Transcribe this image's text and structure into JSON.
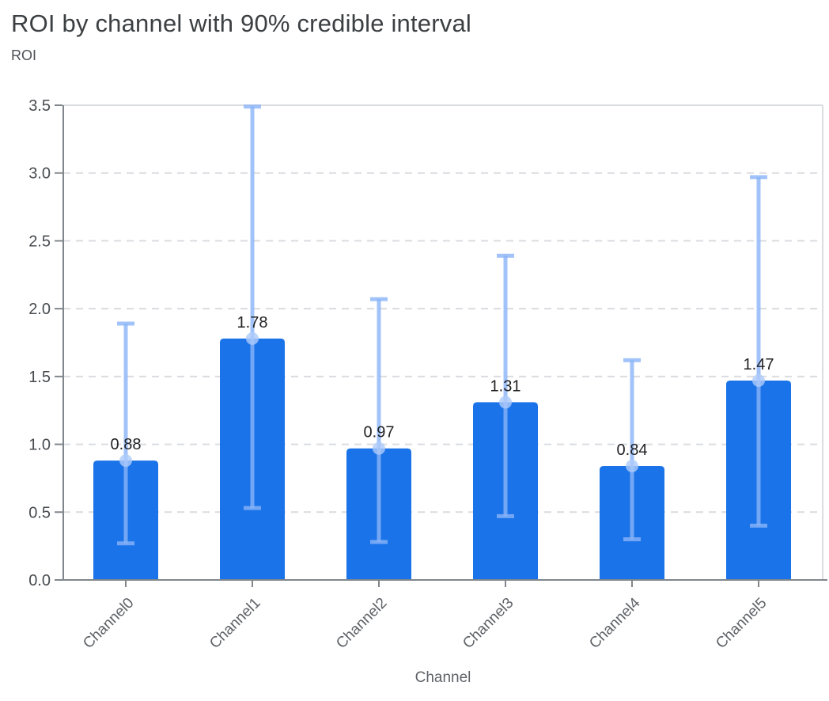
{
  "chart_data": {
    "type": "bar",
    "title": "ROI by channel with 90% credible interval",
    "ylabel": "ROI",
    "xlabel": "Channel",
    "categories": [
      "Channel0",
      "Channel1",
      "Channel2",
      "Channel3",
      "Channel4",
      "Channel5"
    ],
    "values": [
      0.88,
      1.78,
      0.97,
      1.31,
      0.84,
      1.47
    ],
    "bar_labels": [
      "0.88",
      "1.78",
      "0.97",
      "1.31",
      "0.84",
      "1.47"
    ],
    "ci_low": [
      0.27,
      0.53,
      0.28,
      0.47,
      0.3,
      0.4
    ],
    "ci_high": [
      1.89,
      3.49,
      2.07,
      2.39,
      1.62,
      2.97
    ],
    "ylim": [
      0,
      3.5
    ],
    "ytick_step": 0.5,
    "ytick_labels": [
      "0.0",
      "0.5",
      "1.0",
      "1.5",
      "2.0",
      "2.5",
      "3.0",
      "3.5"
    ],
    "grid": "horizontal-dashed",
    "legend": "none",
    "colors": {
      "bar": "#1A73E8",
      "interval": "#8AB4F8",
      "marker": "#AECBFA",
      "grid": "#DADCE0",
      "axis": "#80868B",
      "title_text": "#3C4043",
      "label_text": "#202124",
      "tick_text": "#474B4F",
      "axis_label_text": "#5F6368"
    }
  }
}
